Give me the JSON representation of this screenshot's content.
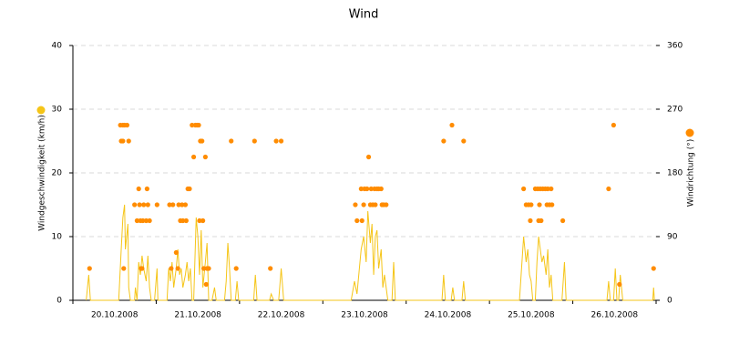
{
  "chart_data": {
    "type": "line-scatter",
    "title": "Wind",
    "y_label": "Windgeschwindigkeit (km/h)",
    "y2_label": "Windrichtung (°)",
    "xlim": [
      0,
      7
    ],
    "xticks": [
      {
        "value": 0.5,
        "label": "20.10.2008"
      },
      {
        "value": 1.5,
        "label": "21.10.2008"
      },
      {
        "value": 2.5,
        "label": "22.10.2008"
      },
      {
        "value": 3.5,
        "label": "23.10.2008"
      },
      {
        "value": 4.5,
        "label": "24.10.2008"
      },
      {
        "value": 5.5,
        "label": "25.10.2008"
      },
      {
        "value": 6.5,
        "label": "26.10.2008"
      }
    ],
    "ylim": [
      0,
      40
    ],
    "yticks": [
      0,
      10,
      20,
      30,
      40
    ],
    "y2lim": [
      0,
      360
    ],
    "y2ticks": [
      0,
      90,
      180,
      270,
      360
    ],
    "grid": true,
    "series": [
      {
        "type": "line",
        "color": "#f5c518",
        "x": [
          0.16,
          0.19,
          0.21,
          0.55,
          0.58,
          0.6,
          0.62,
          0.63,
          0.66,
          0.67,
          0.69,
          0.74,
          0.75,
          0.77,
          0.79,
          0.81,
          0.83,
          0.85,
          0.88,
          0.9,
          0.92,
          0.94,
          0.98,
          1.01,
          1.02,
          1.13,
          1.15,
          1.17,
          1.19,
          1.21,
          1.24,
          1.26,
          1.28,
          1.3,
          1.32,
          1.35,
          1.37,
          1.39,
          1.41,
          1.43,
          1.45,
          1.48,
          1.5,
          1.52,
          1.54,
          1.56,
          1.59,
          1.61,
          1.63,
          1.67,
          1.7,
          1.72,
          1.82,
          1.84,
          1.86,
          1.88,
          1.9,
          1.95,
          1.97,
          1.99,
          2.17,
          2.19,
          2.21,
          2.36,
          2.38,
          2.41,
          2.47,
          2.5,
          2.53,
          3.34,
          3.38,
          3.41,
          3.46,
          3.49,
          3.52,
          3.54,
          3.57,
          3.59,
          3.61,
          3.63,
          3.65,
          3.67,
          3.7,
          3.72,
          3.74,
          3.76,
          3.78,
          3.83,
          3.85,
          3.87,
          4.43,
          4.45,
          4.47,
          4.54,
          4.56,
          4.58,
          4.67,
          4.69,
          4.71,
          5.36,
          5.41,
          5.44,
          5.46,
          5.48,
          5.5,
          5.52,
          5.55,
          5.57,
          5.59,
          5.61,
          5.63,
          5.65,
          5.68,
          5.7,
          5.72,
          5.74,
          5.76,
          5.87,
          5.9,
          5.92,
          6.41,
          6.43,
          6.45,
          6.49,
          6.51,
          6.53,
          6.55,
          6.57,
          6.6,
          6.96,
          6.97,
          6.98
        ],
        "values": [
          0,
          4,
          0,
          0,
          8,
          13,
          15,
          8,
          12,
          2,
          0,
          0,
          2,
          0,
          6,
          4,
          7,
          5,
          3,
          7,
          2,
          0,
          0,
          5,
          0,
          0,
          5,
          3,
          6,
          2,
          5,
          8,
          4,
          5,
          2,
          4,
          6,
          3,
          5,
          0,
          0,
          13,
          10,
          4,
          11,
          2,
          6,
          9,
          0,
          0,
          2,
          0,
          0,
          3,
          9,
          5,
          0,
          0,
          3,
          0,
          0,
          4,
          0,
          0,
          1,
          0,
          0,
          5,
          0,
          0,
          3,
          1,
          8,
          10,
          6,
          14,
          9,
          12,
          4,
          10,
          11,
          5,
          8,
          2,
          4,
          2,
          0,
          0,
          6,
          0,
          0,
          4,
          0,
          0,
          2,
          0,
          0,
          3,
          0,
          0,
          10,
          6,
          8,
          4,
          3,
          0,
          0,
          6,
          10,
          8,
          6,
          7,
          4,
          8,
          2,
          4,
          0,
          0,
          6,
          0,
          0,
          3,
          0,
          0,
          5,
          0,
          0,
          4,
          0,
          0,
          2,
          0
        ]
      },
      {
        "type": "scatter",
        "axis": "y2",
        "color": "#ff8c00",
        "x": [
          0.2,
          0.57,
          0.6,
          0.62,
          0.65,
          0.58,
          0.6,
          0.67,
          0.61,
          0.74,
          0.77,
          0.79,
          0.8,
          0.81,
          0.82,
          0.83,
          0.84,
          0.85,
          0.88,
          0.89,
          0.9,
          0.92,
          1.01,
          1.16,
          1.18,
          1.2,
          1.24,
          1.26,
          1.27,
          1.29,
          1.31,
          1.32,
          1.35,
          1.36,
          1.38,
          1.4,
          1.43,
          1.45,
          1.47,
          1.49,
          1.51,
          1.52,
          1.53,
          1.55,
          1.56,
          1.57,
          1.59,
          1.6,
          1.61,
          1.63,
          1.9,
          1.96,
          2.18,
          2.37,
          2.44,
          2.5,
          3.39,
          3.41,
          3.46,
          3.47,
          3.49,
          3.5,
          3.53,
          3.55,
          3.57,
          3.58,
          3.6,
          3.62,
          3.63,
          3.65,
          3.67,
          3.7,
          3.71,
          3.73,
          3.76,
          4.45,
          4.55,
          4.69,
          5.41,
          5.44,
          5.47,
          5.49,
          5.5,
          5.55,
          5.58,
          5.59,
          5.6,
          5.61,
          5.62,
          5.64,
          5.67,
          5.69,
          5.7,
          5.72,
          5.74,
          5.75,
          5.88,
          6.43,
          6.49,
          6.56,
          6.97
        ],
        "values": [
          45,
          247.5,
          247.5,
          247.5,
          247.5,
          225,
          225,
          225,
          45,
          135,
          112.5,
          157.5,
          135,
          112.5,
          45,
          45,
          112.5,
          135,
          112.5,
          157.5,
          135,
          112.5,
          135,
          135,
          45,
          135,
          67.5,
          45,
          135,
          112.5,
          135,
          112.5,
          135,
          112.5,
          157.5,
          157.5,
          247.5,
          202.5,
          247.5,
          247.5,
          247.5,
          112.5,
          225,
          225,
          112.5,
          45,
          202.5,
          22.5,
          45,
          45,
          225,
          45,
          225,
          45,
          225,
          225,
          135,
          112.5,
          157.5,
          112.5,
          135,
          157.5,
          157.5,
          202.5,
          135,
          157.5,
          135,
          157.5,
          135,
          157.5,
          157.5,
          157.5,
          135,
          135,
          135,
          225,
          247.5,
          225,
          157.5,
          135,
          135,
          112.5,
          135,
          157.5,
          157.5,
          112.5,
          135,
          157.5,
          112.5,
          157.5,
          157.5,
          135,
          157.5,
          135,
          157.5,
          135,
          112.5,
          157.5,
          247.5,
          22.5,
          45
        ]
      }
    ]
  }
}
